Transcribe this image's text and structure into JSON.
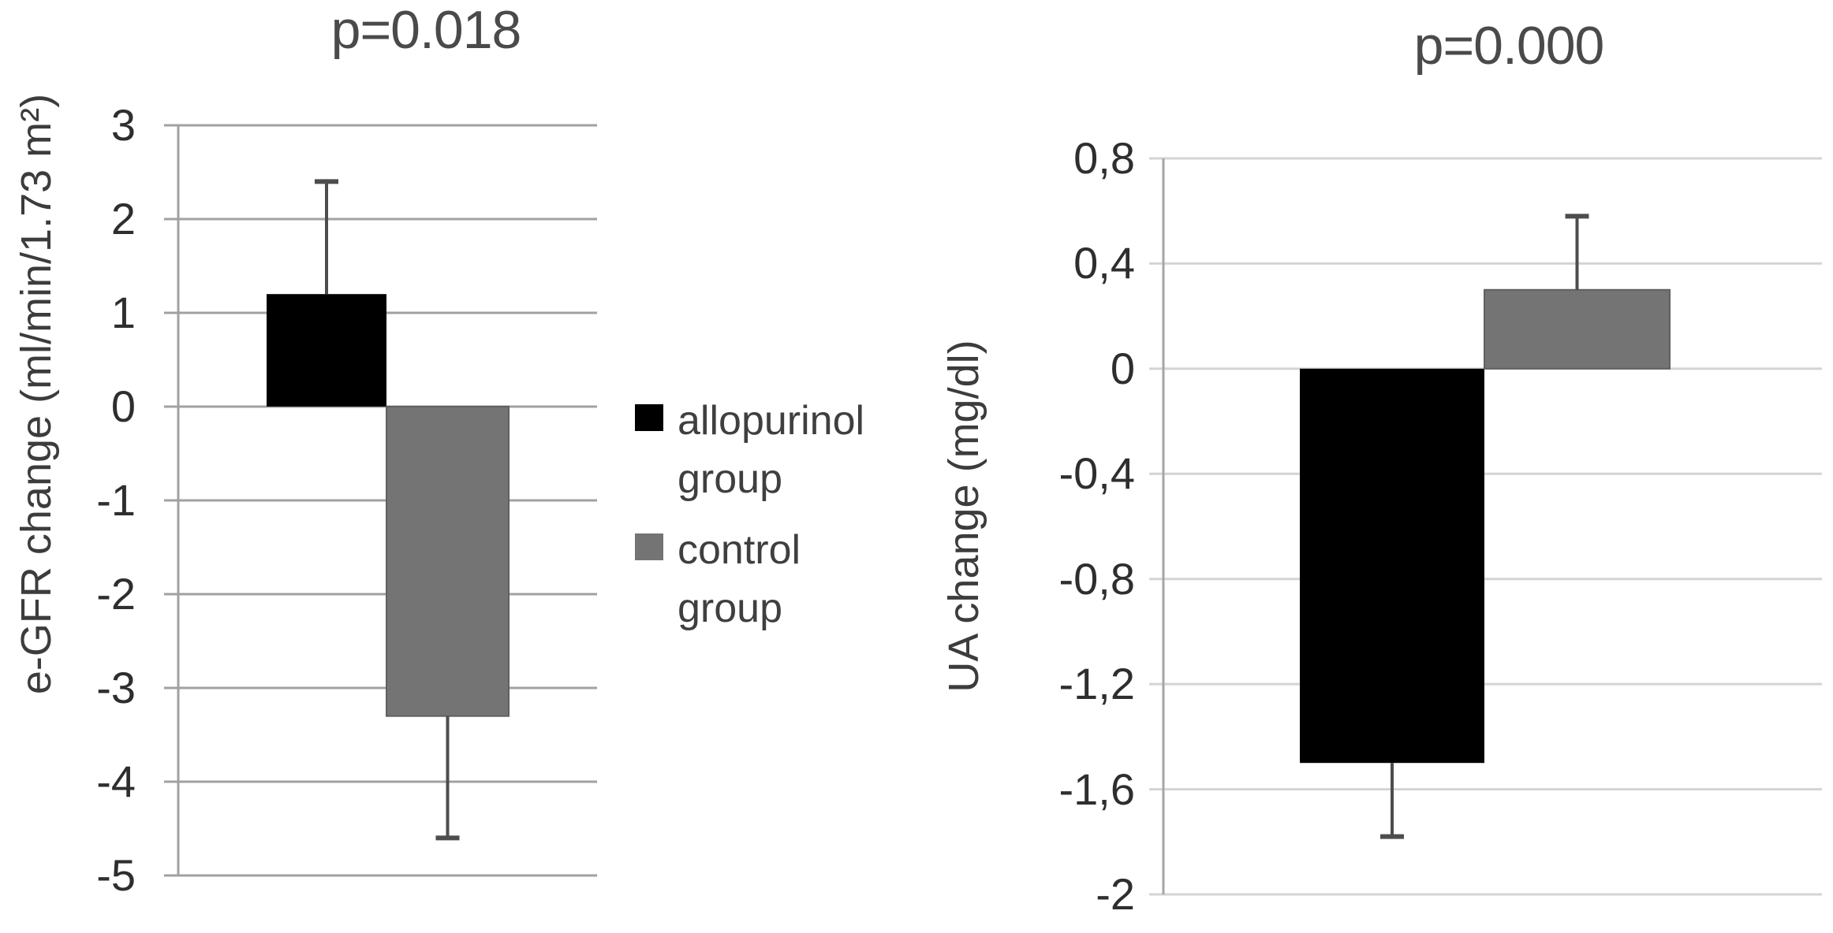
{
  "page": {
    "background": "#ffffff"
  },
  "chart_data": [
    {
      "type": "bar",
      "title": "p=0.018",
      "ylabel": "e-GFR change (ml/min/1.73 m²)",
      "ylim": [
        -5,
        3
      ],
      "grid": true,
      "legend_position": "right",
      "ytick_values": [
        3,
        2,
        1,
        0,
        -1,
        -2,
        -3,
        -4,
        -5
      ],
      "ytick_labels": [
        "3",
        "2",
        "1",
        "0",
        "-1",
        "-2",
        "-3",
        "-4",
        "-5"
      ],
      "bars": [
        {
          "group": "allopurinol group",
          "color": "#000000",
          "value": 1.2,
          "error_high": 2.4
        },
        {
          "group": "control group",
          "color": "#747474",
          "border": "#606060",
          "value": -3.3,
          "error_low": -4.6
        }
      ]
    },
    {
      "type": "bar",
      "title": "p=0.000",
      "ylabel": "UA change (mg/dl)",
      "ylim": [
        -2,
        0.8
      ],
      "grid": true,
      "ytick_values": [
        0.8,
        0.4,
        0,
        -0.4,
        -0.8,
        -1.2,
        -1.6,
        -2
      ],
      "ytick_labels": [
        "0,8",
        "0,4",
        "0",
        "-0,4",
        "-0,8",
        "-1,2",
        "-1,6",
        "-2"
      ],
      "bars": [
        {
          "group": "allopurinol group",
          "color": "#000000",
          "value": -1.5,
          "error_low": -1.78
        },
        {
          "group": "control group",
          "color": "#747474",
          "border": "#606060",
          "value": 0.3,
          "error_high": 0.58
        }
      ]
    }
  ],
  "legend": {
    "items": [
      {
        "color": "#000000",
        "label_lines": [
          "allopurinol",
          "group"
        ]
      },
      {
        "color": "#747474",
        "label_lines": [
          "control",
          "group"
        ]
      }
    ]
  },
  "colors": {
    "error_bar": "#4d4d4d",
    "grid_left": "#a1a1a1",
    "grid_right": "#d4d4d4",
    "axis": "#a1a1a1"
  }
}
